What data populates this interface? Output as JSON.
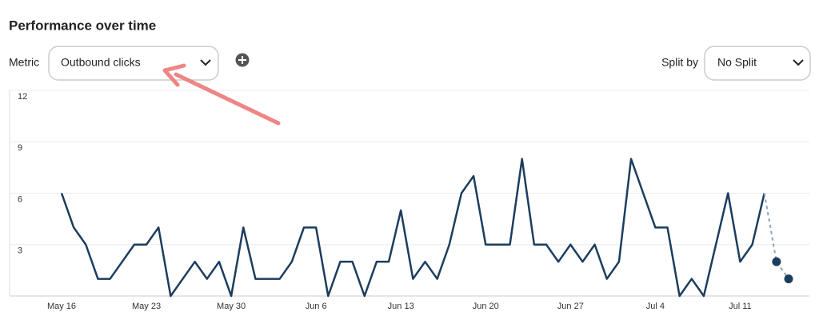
{
  "header": {
    "title": "Performance over time"
  },
  "controls": {
    "metric_label": "Metric",
    "metric_value": "Outbound clicks",
    "split_label": "Split by",
    "split_value": "No Split"
  },
  "chart_data": {
    "type": "line",
    "color": "#1c3d5e",
    "projection_color": "#8aa4ba",
    "dashed_tail": 2,
    "categories": [
      "May 16",
      null,
      null,
      null,
      null,
      null,
      null,
      "May 23",
      null,
      null,
      null,
      null,
      null,
      null,
      "May 30",
      null,
      null,
      null,
      null,
      null,
      null,
      "Jun 6",
      null,
      null,
      null,
      null,
      null,
      null,
      "Jun 13",
      null,
      null,
      null,
      null,
      null,
      null,
      "Jun 20",
      null,
      null,
      null,
      null,
      null,
      null,
      "Jun 27",
      null,
      null,
      null,
      null,
      null,
      null,
      "Jul 4",
      null,
      null,
      null,
      null,
      null,
      null,
      "Jul 11",
      null,
      null,
      null,
      null
    ],
    "values": [
      6,
      4,
      3,
      1,
      1,
      2,
      3,
      3,
      4,
      0,
      1,
      2,
      1,
      2,
      0,
      4,
      1,
      1,
      1,
      2,
      4,
      4,
      0,
      2,
      2,
      0,
      2,
      2,
      5,
      1,
      2,
      1,
      3,
      6,
      7,
      3,
      3,
      3,
      8,
      3,
      3,
      2,
      3,
      2,
      3,
      1,
      2,
      8,
      6,
      4,
      4,
      0,
      1,
      0,
      3,
      6,
      2,
      3,
      6,
      2,
      1
    ],
    "ylim": [
      0,
      12
    ],
    "yticks": [
      3,
      6,
      9,
      12
    ],
    "grid": true
  }
}
